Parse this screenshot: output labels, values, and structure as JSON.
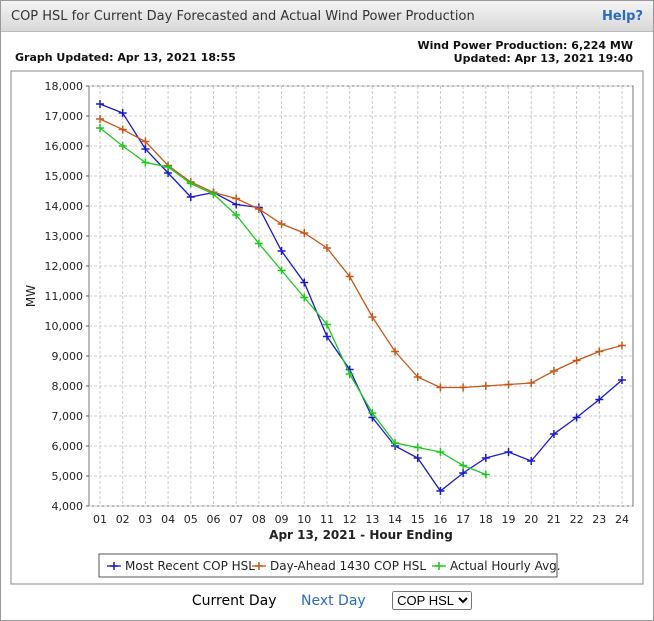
{
  "header": {
    "title": "COP HSL for Current Day Forecasted and Actual Wind Power Production",
    "help": "Help?"
  },
  "graph_updated": "Graph Updated: Apr 13, 2021 18:55",
  "wind_production": "Wind Power Production: 6,224 MW",
  "updated": "Updated: Apr 13, 2021 19:40",
  "chart_data": {
    "type": "line",
    "xlabel": "Apr 13, 2021 - Hour Ending",
    "ylabel": "MW",
    "categories": [
      "01",
      "02",
      "03",
      "04",
      "05",
      "06",
      "07",
      "08",
      "09",
      "10",
      "11",
      "12",
      "13",
      "14",
      "15",
      "16",
      "17",
      "18",
      "19",
      "20",
      "21",
      "22",
      "23",
      "24"
    ],
    "ylim": [
      4000,
      18000
    ],
    "yticks": [
      {
        "value": 4000,
        "label": "4,000"
      },
      {
        "value": 5000,
        "label": "5,000"
      },
      {
        "value": 6000,
        "label": "6,000"
      },
      {
        "value": 7000,
        "label": "7,000"
      },
      {
        "value": 8000,
        "label": "8,000"
      },
      {
        "value": 9000,
        "label": "9,000"
      },
      {
        "value": 10000,
        "label": "10,000"
      },
      {
        "value": 11000,
        "label": "11,000"
      },
      {
        "value": 12000,
        "label": "12,000"
      },
      {
        "value": 13000,
        "label": "13,000"
      },
      {
        "value": 14000,
        "label": "14,000"
      },
      {
        "value": 15000,
        "label": "15,000"
      },
      {
        "value": 16000,
        "label": "16,000"
      },
      {
        "value": 17000,
        "label": "17,000"
      },
      {
        "value": 18000,
        "label": "18,000"
      }
    ],
    "grid": true,
    "series": [
      {
        "name": "Most Recent COP HSL",
        "color": "#1a1acc",
        "values": [
          17400,
          17100,
          15900,
          15100,
          14300,
          14450,
          14050,
          13950,
          12500,
          11450,
          9650,
          8550,
          6950,
          6000,
          5600,
          4500,
          5100,
          5600,
          5800,
          5500,
          6400,
          6950,
          7550,
          8200
        ]
      },
      {
        "name": "Day-Ahead 1430 COP HSL",
        "color": "#c8581a",
        "values": [
          16900,
          16550,
          16150,
          15350,
          14800,
          14450,
          14250,
          13900,
          13400,
          13100,
          12600,
          11650,
          10300,
          9150,
          8300,
          7950,
          7950,
          8000,
          8050,
          8100,
          8500,
          8850,
          9150,
          9350
        ]
      },
      {
        "name": "Actual Hourly Avg.",
        "color": "#1ec81e",
        "values": [
          16600,
          16000,
          15450,
          15300,
          14750,
          14400,
          13700,
          12750,
          11850,
          10950,
          10050,
          8400,
          7100,
          6100,
          5950,
          5800,
          5350,
          5050,
          null,
          null,
          null,
          null,
          null,
          null
        ]
      }
    ]
  },
  "controls": {
    "current_day": "Current Day",
    "next_day": "Next Day",
    "select": "COP HSL"
  }
}
